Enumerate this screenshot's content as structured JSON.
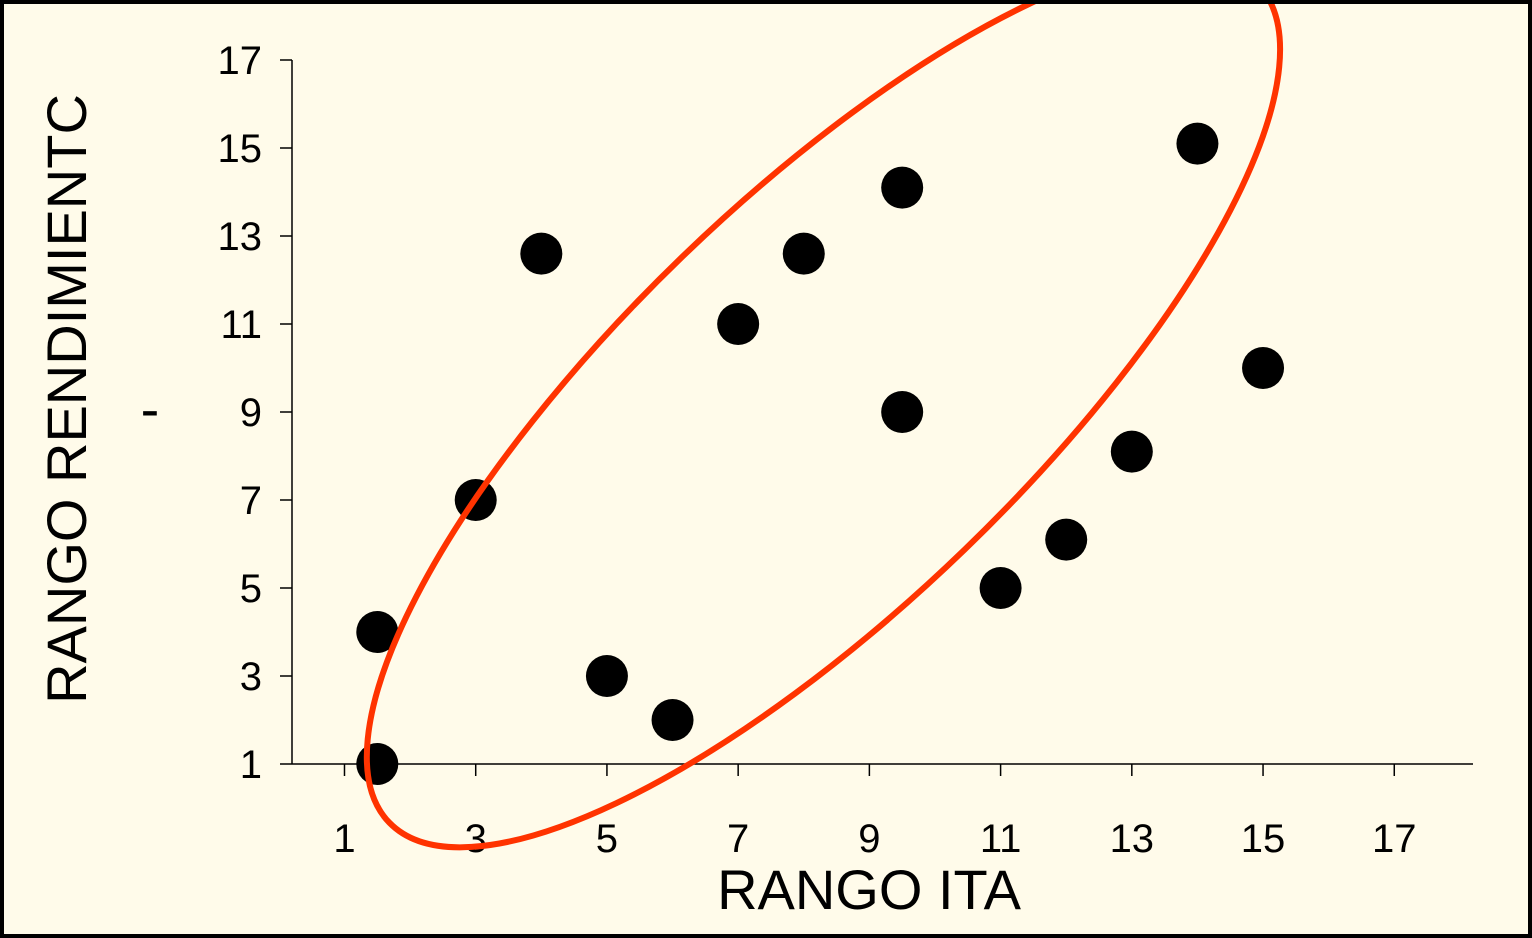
{
  "chart_data": {
    "type": "scatter",
    "xlabel": "RANGO ITA",
    "ylabel": "RANGO RENDIMIENTC",
    "ylabel_mark": "-",
    "xlim": [
      0.2,
      18.2
    ],
    "ylim": [
      1,
      17
    ],
    "x_ticks": [
      1,
      3,
      5,
      7,
      9,
      11,
      13,
      15,
      17
    ],
    "y_ticks": [
      1,
      3,
      5,
      7,
      9,
      11,
      13,
      15,
      17
    ],
    "grid": false,
    "points": [
      {
        "x": 1.5,
        "y": 1
      },
      {
        "x": 1.5,
        "y": 4
      },
      {
        "x": 3,
        "y": 7
      },
      {
        "x": 4,
        "y": 12.6
      },
      {
        "x": 5,
        "y": 3
      },
      {
        "x": 6,
        "y": 2
      },
      {
        "x": 7,
        "y": 11
      },
      {
        "x": 8,
        "y": 12.6
      },
      {
        "x": 9.5,
        "y": 14.1
      },
      {
        "x": 9.5,
        "y": 9
      },
      {
        "x": 11,
        "y": 5
      },
      {
        "x": 12,
        "y": 6.1
      },
      {
        "x": 13,
        "y": 8.1
      },
      {
        "x": 14,
        "y": 15.1
      },
      {
        "x": 15,
        "y": 10
      }
    ],
    "annotation": {
      "shape": "ellipse",
      "color": "#FF3300",
      "center": {
        "x": 8.3,
        "y": 9.2
      },
      "radius_x_units": 9.2,
      "radius_y_units": 3.1,
      "angle_deg": 44
    },
    "colors": {
      "background": "#FFFBEA",
      "border": "#000000",
      "point": "#000000",
      "axis": "#000000"
    }
  }
}
